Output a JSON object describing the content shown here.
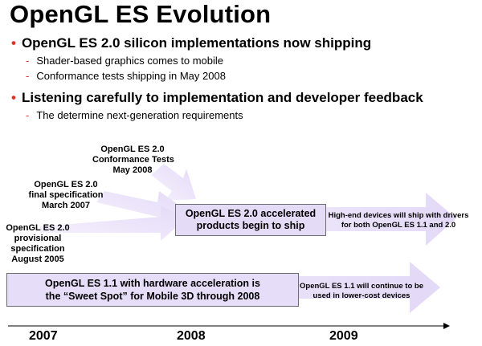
{
  "title": "OpenGL ES Evolution",
  "bullets": [
    {
      "text": "OpenGL ES 2.0 silicon implementations now shipping",
      "subs": [
        "Shader-based graphics comes to mobile",
        "Conformance tests shipping in May 2008"
      ]
    },
    {
      "text": "Listening carefully to implementation and developer feedback",
      "subs": [
        "The determine next-generation requirements"
      ]
    }
  ],
  "milestones": [
    {
      "lines": [
        "OpenGL ES 2.0",
        "Conformance Tests",
        "May 2008"
      ]
    },
    {
      "lines": [
        "OpenGL ES 2.0",
        "final specification",
        "March 2007"
      ]
    },
    {
      "lines": [
        "OpenGL ES 2.0",
        "provisional",
        "specification",
        "August 2005"
      ]
    }
  ],
  "boxes": {
    "es20": [
      "OpenGL ES 2.0 accelerated",
      "products begin to ship"
    ],
    "es11": [
      "OpenGL ES 1.1 with hardware acceleration is",
      "the “Sweet Spot” for Mobile 3D through 2008"
    ]
  },
  "notes": {
    "high_end": [
      "High-end devices will ship with drivers",
      "for both OpenGL ES 1.1 and 2.0"
    ],
    "lower_cost": [
      "OpenGL ES 1.1 will continue to be",
      "used in lower-cost devices"
    ]
  },
  "years": [
    "2007",
    "2008",
    "2009"
  ],
  "colors": {
    "arrow_fill": "#ede6fb",
    "arrow_fill_mid": "#e2d8f8",
    "box_border": "#6b6b6b",
    "bullet_accent": "#e0302a"
  }
}
